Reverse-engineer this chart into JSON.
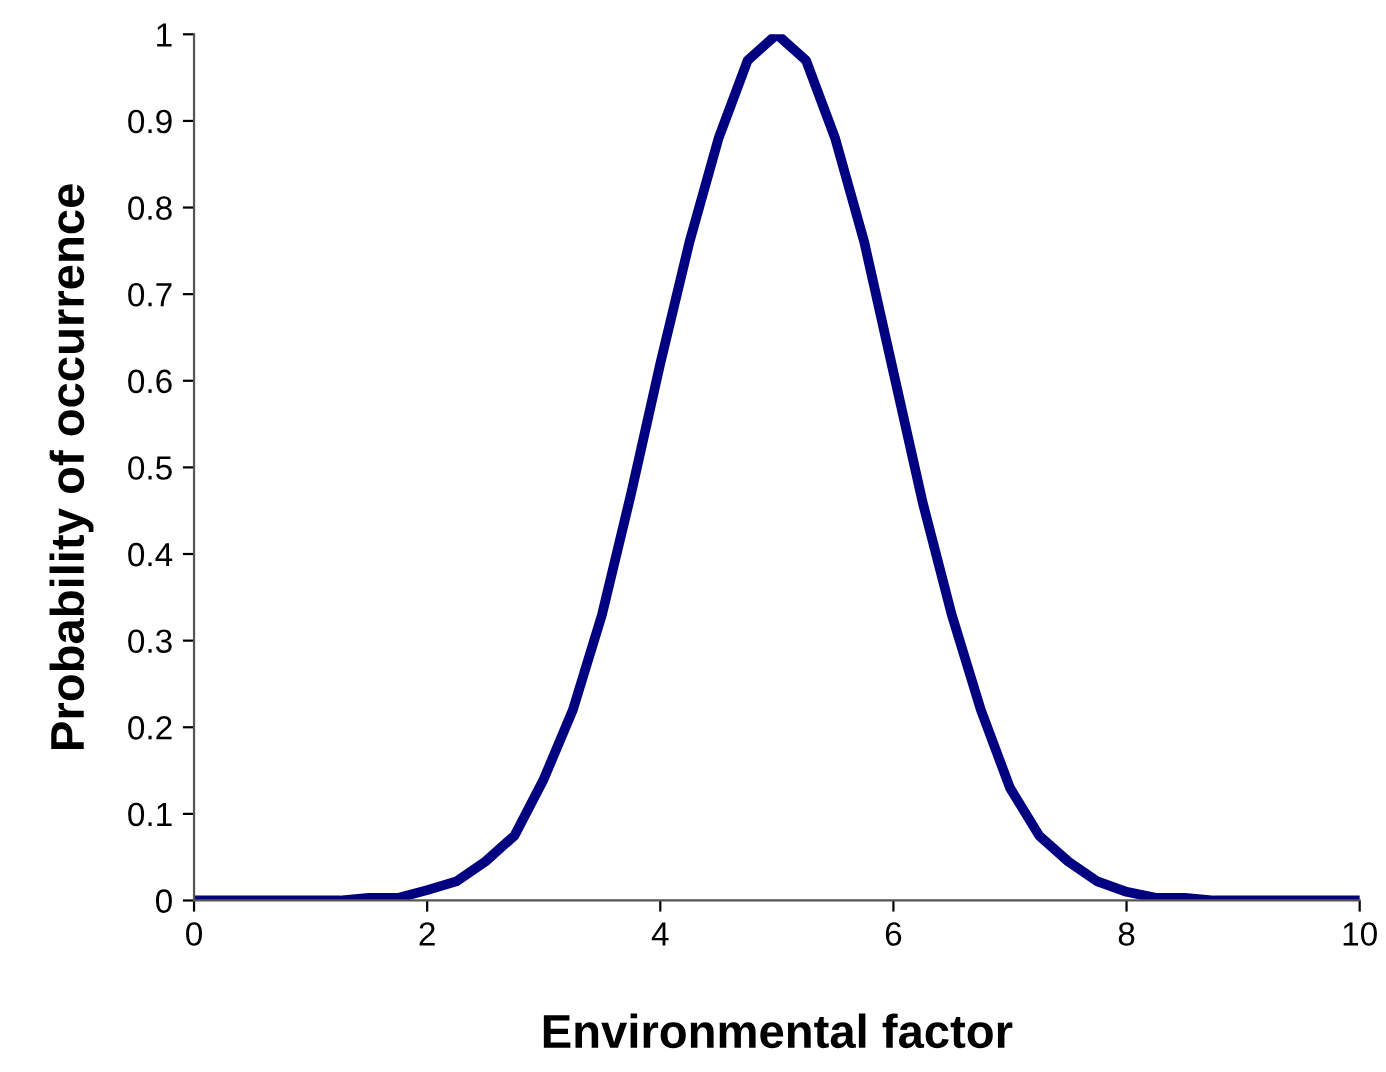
{
  "chart_data": {
    "type": "line",
    "xlabel": "Environmental factor",
    "ylabel": "Probability of occurrence",
    "x": [
      0,
      0.25,
      0.5,
      0.75,
      1,
      1.25,
      1.5,
      1.75,
      2,
      2.25,
      2.5,
      2.75,
      3,
      3.25,
      3.5,
      3.75,
      4,
      4.25,
      4.5,
      4.75,
      5,
      5.25,
      5.5,
      5.75,
      6,
      6.25,
      6.5,
      6.75,
      7,
      7.25,
      7.5,
      7.75,
      8,
      8.25,
      8.5,
      8.75,
      9,
      9.25,
      9.5,
      9.75,
      10
    ],
    "series": [
      {
        "color": "#000080",
        "values": [
          0,
          0,
          0,
          0,
          0,
          0,
          0.003,
          0.003,
          0.012,
          0.022,
          0.045,
          0.075,
          0.14,
          0.22,
          0.33,
          0.47,
          0.62,
          0.76,
          0.88,
          0.97,
          1.0,
          0.97,
          0.88,
          0.76,
          0.61,
          0.46,
          0.33,
          0.22,
          0.13,
          0.075,
          0.045,
          0.022,
          0.01,
          0.003,
          0.003,
          0,
          0,
          0,
          0,
          0,
          0
        ]
      }
    ],
    "xlim": [
      0,
      10
    ],
    "xticks": [
      0,
      2,
      4,
      6,
      8,
      10
    ],
    "ylim": [
      0,
      1
    ],
    "yticks": [
      0,
      0.1,
      0.2,
      0.3,
      0.4,
      0.5,
      0.6,
      0.7,
      0.8,
      0.9,
      1
    ],
    "grid": false,
    "marker": "none",
    "line_style": "solid"
  }
}
